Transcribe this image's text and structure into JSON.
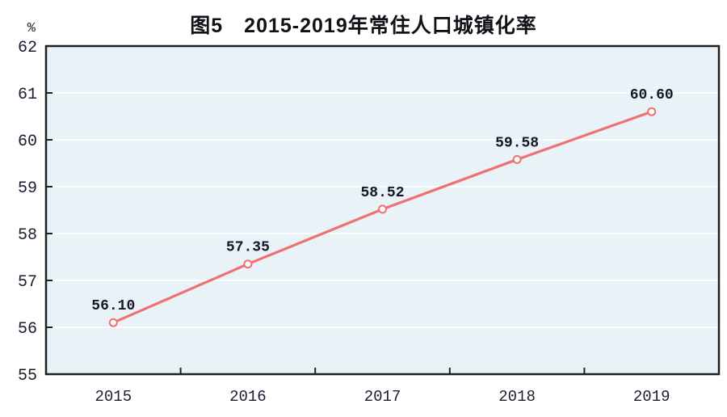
{
  "chart_data": {
    "type": "line",
    "title": "图5　2015-2019年常住人口城镇化率",
    "y_unit": "%",
    "categories": [
      "2015",
      "2016",
      "2017",
      "2018",
      "2019"
    ],
    "series": [
      {
        "name": "常住人口城镇化率",
        "values": [
          56.1,
          57.35,
          58.52,
          59.58,
          60.6
        ],
        "point_labels": [
          "56.10",
          "57.35",
          "58.52",
          "59.58",
          "60.60"
        ]
      }
    ],
    "xlabel": "",
    "ylabel": "%",
    "ylim": [
      55,
      62
    ],
    "y_ticks": [
      55,
      56,
      57,
      58,
      59,
      60,
      61,
      62
    ],
    "grid": "horizontal",
    "legend_position": "none",
    "colors": {
      "line": "#ee7173",
      "marker_fill": "#fdfdfd",
      "plot_background": "#e9f3f7",
      "gridline": "#ffffff",
      "frame": "#1f1f1f",
      "tick_text": "#1c1c30",
      "label_text": "#16162a"
    }
  }
}
